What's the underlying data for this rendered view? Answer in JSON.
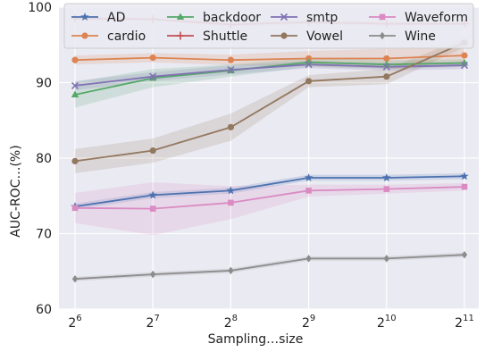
{
  "chart_data": {
    "type": "line",
    "xlabel": "Sampling…size",
    "ylabel": "AUC-ROC…(%)",
    "x_ticks": [
      {
        "base": "2",
        "exp": "6"
      },
      {
        "base": "2",
        "exp": "7"
      },
      {
        "base": "2",
        "exp": "8"
      },
      {
        "base": "2",
        "exp": "9"
      },
      {
        "base": "2",
        "exp": "10"
      },
      {
        "base": "2",
        "exp": "11"
      }
    ],
    "x": [
      64,
      128,
      256,
      512,
      1024,
      2048
    ],
    "x_scale": "log2",
    "ylim": [
      60,
      100
    ],
    "y_ticks": [
      "60",
      "70",
      "80",
      "90",
      "100"
    ],
    "grid": true,
    "legend_placement": "top",
    "series": [
      {
        "name": "AD",
        "color": "#4c72b0",
        "marker": "star",
        "values": [
          73.6,
          75.1,
          75.7,
          77.4,
          77.4,
          77.6
        ],
        "band": [
          0.4,
          0.4,
          0.4,
          0.4,
          0.4,
          0.4
        ]
      },
      {
        "name": "cardio",
        "color": "#dd8452",
        "marker": "circle",
        "values": [
          93.0,
          93.3,
          93.0,
          93.2,
          93.2,
          93.6
        ],
        "band": [
          0.6,
          0.6,
          0.7,
          1.0,
          1.3,
          1.4
        ]
      },
      {
        "name": "backdoor",
        "color": "#55a868",
        "marker": "triangle",
        "values": [
          88.4,
          90.6,
          91.6,
          92.7,
          92.4,
          92.6
        ],
        "band": [
          1.7,
          1.2,
          0.8,
          0.6,
          0.6,
          0.5
        ]
      },
      {
        "name": "Shuttle",
        "color": "#c44e52",
        "marker": "plus",
        "values": [
          98.5,
          98.4,
          97.7,
          98.0,
          97.8,
          97.8
        ],
        "band": [
          0.2,
          0.2,
          0.3,
          0.3,
          0.3,
          0.2
        ]
      },
      {
        "name": "smtp",
        "color": "#8172b3",
        "marker": "x",
        "values": [
          89.6,
          90.8,
          91.7,
          92.4,
          92.1,
          92.3
        ],
        "band": [
          0.6,
          0.6,
          0.6,
          0.5,
          0.5,
          0.5
        ]
      },
      {
        "name": "Vowel",
        "color": "#937860",
        "marker": "circle",
        "values": [
          79.6,
          81.0,
          84.1,
          90.2,
          90.8,
          95.3
        ],
        "band": [
          1.6,
          1.6,
          1.8,
          0.8,
          1.0,
          0.6
        ]
      },
      {
        "name": "Waveform",
        "color": "#da8bc3",
        "marker": "square",
        "values": [
          73.4,
          73.3,
          74.1,
          75.7,
          75.9,
          76.2
        ],
        "band": [
          2.0,
          3.5,
          2.2,
          0.8,
          0.6,
          0.5
        ]
      },
      {
        "name": "Wine",
        "color": "#8c8c8c",
        "marker": "diamond",
        "values": [
          64.0,
          64.6,
          65.1,
          66.7,
          66.7,
          67.2
        ],
        "band": [
          0.3,
          0.3,
          0.3,
          0.3,
          0.3,
          0.3
        ]
      }
    ]
  }
}
